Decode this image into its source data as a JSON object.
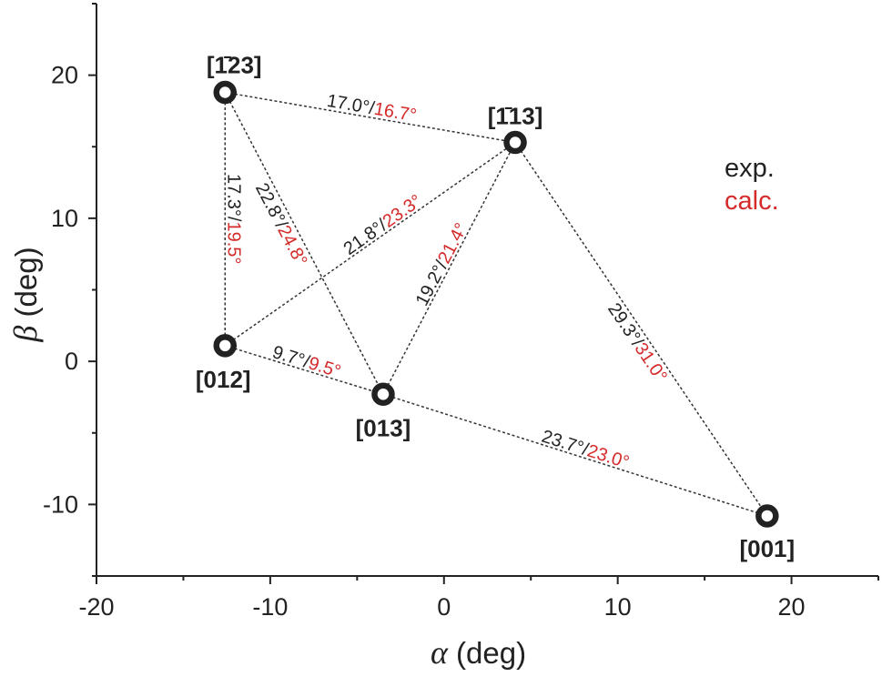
{
  "chart_data": {
    "type": "scatter",
    "xlabel": {
      "symbol": "α",
      "unit": "(deg)"
    },
    "ylabel": {
      "symbol": "β",
      "unit": "(deg)"
    },
    "xlim": [
      -20,
      25
    ],
    "ylim": [
      -15,
      25
    ],
    "x_ticks": [
      -20,
      -10,
      0,
      10,
      20
    ],
    "y_ticks": [
      -10,
      0,
      10,
      20
    ],
    "points": [
      {
        "id": "p123",
        "label": "[1̄23]",
        "x": -12.6,
        "y": 18.8
      },
      {
        "id": "p113",
        "label": "[1̄13]",
        "x": 4.1,
        "y": 15.3
      },
      {
        "id": "p012",
        "label": "[012]",
        "x": -12.6,
        "y": 1.1
      },
      {
        "id": "p013",
        "label": "[013]",
        "x": -3.5,
        "y": -2.3
      },
      {
        "id": "p001",
        "label": "[001]",
        "x": 18.6,
        "y": -10.8
      }
    ],
    "edges": [
      {
        "from": "p123",
        "to": "p113",
        "exp": "17.0°",
        "calc": "16.7°"
      },
      {
        "from": "p123",
        "to": "p012",
        "exp": "17.3°",
        "calc": "19.5°"
      },
      {
        "from": "p123",
        "to": "p013",
        "exp": "22.8°",
        "calc": "24.8°"
      },
      {
        "from": "p012",
        "to": "p113",
        "exp": "21.8°",
        "calc": "23.3°"
      },
      {
        "from": "p013",
        "to": "p113",
        "exp": "19.2°",
        "calc": "21.4°"
      },
      {
        "from": "p113",
        "to": "p001",
        "exp": "29.3°",
        "calc": "31.0°"
      },
      {
        "from": "p012",
        "to": "p013",
        "exp": "9.7°",
        "calc": "9.5°"
      },
      {
        "from": "p013",
        "to": "p001",
        "exp": "23.7°",
        "calc": "23.0°"
      }
    ],
    "separator": "/",
    "legend": {
      "placement": "right",
      "entries": [
        {
          "text": "exp.",
          "color": "#222222"
        },
        {
          "text": "calc.",
          "color": "#d42a2a"
        }
      ]
    },
    "colors": {
      "exp": "#222222",
      "calc": "#d42a2a",
      "axis": "#222222"
    }
  }
}
